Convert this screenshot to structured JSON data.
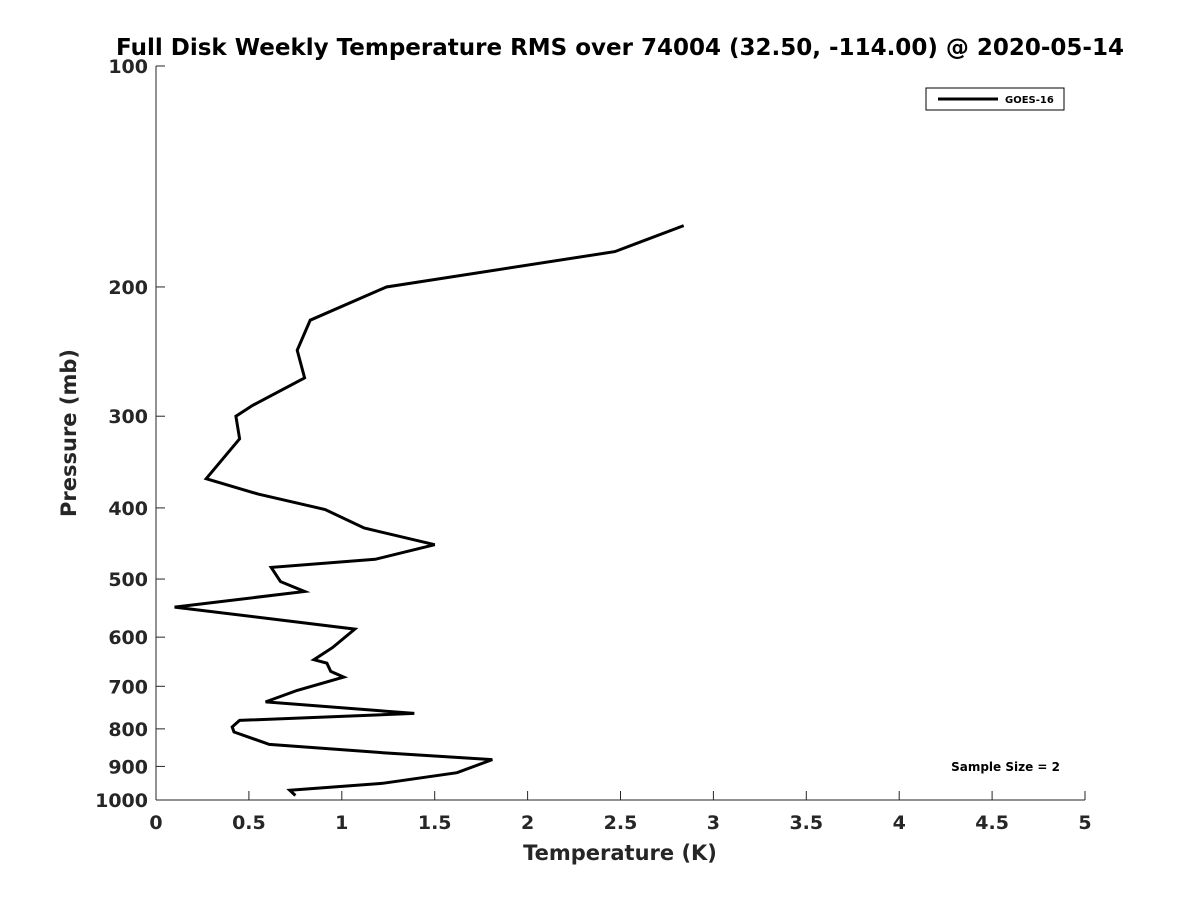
{
  "chart_data": {
    "type": "line",
    "title": "Full Disk Weekly Temperature RMS over 74004 (32.50, -114.00) @ 2020-05-14",
    "xlabel": "Temperature (K)",
    "ylabel": "Pressure (mb)",
    "xlim": [
      0,
      5
    ],
    "ylim": [
      1000,
      100
    ],
    "yscale": "log",
    "y_reversed": true,
    "x_ticks": [
      "0",
      "0.5",
      "1",
      "1.5",
      "2",
      "2.5",
      "3",
      "3.5",
      "4",
      "4.5",
      "5"
    ],
    "y_ticks": [
      {
        "value": 100,
        "label": "100"
      },
      {
        "value": 200,
        "label": "200"
      },
      {
        "value": 300,
        "label": "300"
      },
      {
        "value": 400,
        "label": "400"
      },
      {
        "value": 500,
        "label": "500"
      },
      {
        "value": 600,
        "label": "600"
      },
      {
        "value": 700,
        "label": "700"
      },
      {
        "value": 800,
        "label": "800"
      },
      {
        "value": 900,
        "label": "900"
      },
      {
        "value": 1000,
        "label": "1000"
      }
    ],
    "grid": false,
    "legend_position": "top-right",
    "series": [
      {
        "name": "GOES-16",
        "color": "#000000",
        "x": [
          2.84,
          2.47,
          1.24,
          0.83,
          0.76,
          0.8,
          0.52,
          0.43,
          0.45,
          0.27,
          0.55,
          0.91,
          1.12,
          1.5,
          1.18,
          0.62,
          0.67,
          0.8,
          0.1,
          1.07,
          0.95,
          0.85,
          0.92,
          0.94,
          1.01,
          0.76,
          0.59,
          1.39,
          0.45,
          0.41,
          0.42,
          0.61,
          1.22,
          1.81,
          1.62,
          1.22,
          0.72,
          0.75
        ],
        "y": [
          165,
          179,
          200,
          222,
          244,
          266,
          290,
          300,
          322,
          365,
          383,
          402,
          426,
          449,
          470,
          482,
          504,
          520,
          546,
          585,
          620,
          644,
          651,
          668,
          680,
          709,
          735,
          762,
          779,
          795,
          808,
          840,
          862,
          881,
          918,
          949,
          970,
          986
        ]
      }
    ],
    "annotations": [
      "Sample Size = 2"
    ]
  }
}
